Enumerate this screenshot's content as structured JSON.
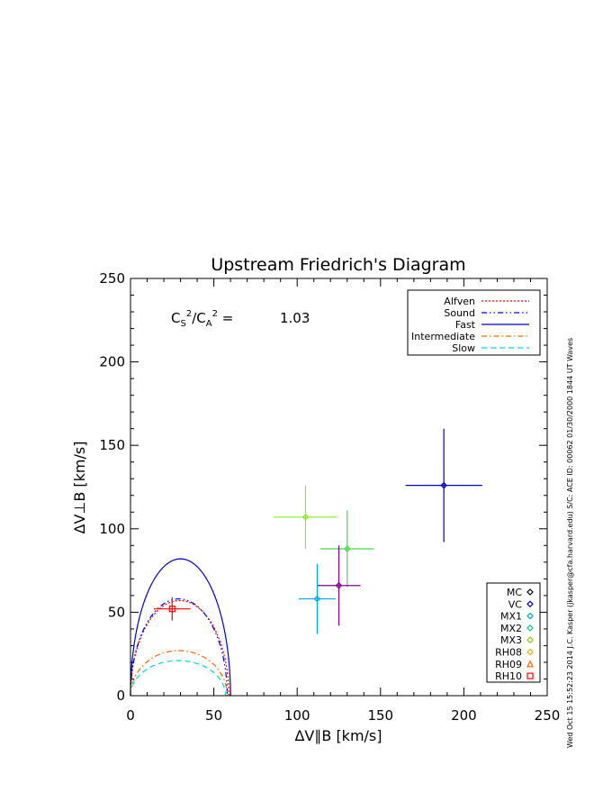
{
  "chart_data": {
    "type": "scatter",
    "title": "Upstream Friedrich's Diagram",
    "xlabel": "ΔV∥B [km/s]",
    "ylabel": "ΔV⊥B [km/s]",
    "xlim": [
      0,
      250
    ],
    "ylim": [
      0,
      250
    ],
    "xticks": [
      "0",
      "50",
      "100",
      "150",
      "200",
      "250"
    ],
    "yticks": [
      "0",
      "50",
      "100",
      "150",
      "200",
      "250"
    ],
    "annotation": {
      "label": "C_S²/C_A² =",
      "value": "1.03"
    },
    "side_text": "Wed Oct 15 15:52:23 2014   J.C. Kasper (jkasper@cfa.harvard.edu)   S/C: ACE ID: 00062 01/30/2000   1844 UT Waves",
    "curve_legend": [
      {
        "name": "Alfven",
        "color": "#ff0000",
        "dash": "dot"
      },
      {
        "name": "Sound",
        "color": "#0000ff",
        "dash": "dash-dot-dot"
      },
      {
        "name": "Fast",
        "color": "#0000cc",
        "dash": "solid"
      },
      {
        "name": "Intermediate",
        "color": "#ff6600",
        "dash": "dash-dot"
      },
      {
        "name": "Slow",
        "color": "#00dddd",
        "dash": "dash"
      }
    ],
    "curves": [
      {
        "name": "Alfven",
        "color": "#ff0000",
        "dash": "dot",
        "x_extent": [
          0,
          59
        ],
        "y_max": 57
      },
      {
        "name": "Sound",
        "color": "#0000ff",
        "dash": "dash-dot-dot",
        "x_extent": [
          0,
          58
        ],
        "y_max": 58
      },
      {
        "name": "Fast",
        "color": "#0000cc",
        "dash": "solid",
        "x_extent": [
          0,
          60
        ],
        "y_max": 82
      },
      {
        "name": "Intermediate",
        "color": "#ff6600",
        "dash": "dash-dot",
        "x_extent": [
          0,
          58
        ],
        "y_max": 27
      },
      {
        "name": "Slow",
        "color": "#00dddd",
        "dash": "dash",
        "x_extent": [
          0,
          57
        ],
        "y_max": 21
      }
    ],
    "point_legend": [
      {
        "name": "MC",
        "color": "#000000",
        "marker": "diamond"
      },
      {
        "name": "VC",
        "color": "#0000cc",
        "marker": "diamond"
      },
      {
        "name": "MX1",
        "color": "#00aadd",
        "marker": "diamond"
      },
      {
        "name": "MX2",
        "color": "#00cc88",
        "marker": "diamond"
      },
      {
        "name": "MX3",
        "color": "#88cc00",
        "marker": "diamond"
      },
      {
        "name": "RH08",
        "color": "#ffaa00",
        "marker": "diamond"
      },
      {
        "name": "RH09",
        "color": "#ff6600",
        "marker": "triangle"
      },
      {
        "name": "RH10",
        "color": "#ff0000",
        "marker": "square"
      }
    ],
    "points": [
      {
        "x": 188,
        "y": 126,
        "xerr": 23,
        "yerr": 34,
        "color": "#0000cc",
        "marker": "diamond"
      },
      {
        "x": 105,
        "y": 107,
        "xerr": 19,
        "yerr": 19,
        "color": "#88ee22",
        "marker": "diamond"
      },
      {
        "x": 130,
        "y": 88,
        "xerr": 16,
        "yerr": 23,
        "color": "#44dd44",
        "marker": "diamond"
      },
      {
        "x": 125,
        "y": 66,
        "xerr": 13,
        "yerr": 24,
        "color": "#880088",
        "marker": "diamond"
      },
      {
        "x": 112,
        "y": 58,
        "xerr": 11,
        "yerr": 21,
        "color": "#00aadd",
        "marker": "diamond"
      },
      {
        "x": 25,
        "y": 52,
        "xerr": 11,
        "yerr": 7,
        "color": "#ff0000",
        "marker": "square"
      }
    ]
  }
}
